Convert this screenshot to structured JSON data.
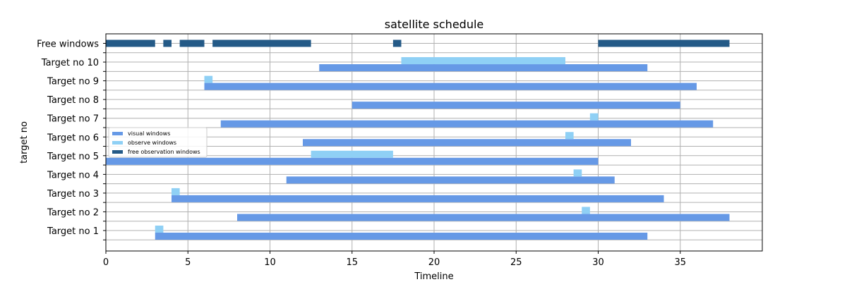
{
  "chart_data": {
    "type": "gantt",
    "title": "satellite schedule",
    "xlabel": "Timeline",
    "ylabel": "target no",
    "xlim": [
      0,
      40
    ],
    "x_ticks": [
      0,
      5,
      10,
      15,
      20,
      25,
      30,
      35
    ],
    "grid": true,
    "legend_position": "center-left",
    "colors": {
      "visual": "#6699e6",
      "observe": "#8fd0f5",
      "free": "#245a87"
    },
    "legend": [
      {
        "key": "visual",
        "label": "visual windows"
      },
      {
        "key": "observe",
        "label": "observe windows"
      },
      {
        "key": "free",
        "label": "free observation windows"
      }
    ],
    "rows": [
      {
        "label": "Target no 1",
        "visual": [
          3,
          33
        ],
        "observe": [
          3,
          3.5
        ]
      },
      {
        "label": "Target no 2",
        "visual": [
          8,
          38
        ],
        "observe": [
          29,
          29.5
        ]
      },
      {
        "label": "Target no 3",
        "visual": [
          4,
          34
        ],
        "observe": [
          4,
          4.5
        ]
      },
      {
        "label": "Target no 4",
        "visual": [
          11,
          31
        ],
        "observe": [
          28.5,
          29
        ]
      },
      {
        "label": "Target no 5",
        "visual": [
          0,
          30
        ],
        "observe": [
          12.5,
          17.5
        ]
      },
      {
        "label": "Target no 6",
        "visual": [
          12,
          32
        ],
        "observe": [
          28,
          28.5
        ]
      },
      {
        "label": "Target no 7",
        "visual": [
          7,
          37
        ],
        "observe": [
          29.5,
          30
        ]
      },
      {
        "label": "Target no 8",
        "visual": [
          15,
          35
        ],
        "observe": null
      },
      {
        "label": "Target no 9",
        "visual": [
          6,
          36
        ],
        "observe": [
          6,
          6.5
        ]
      },
      {
        "label": "Target no 10",
        "visual": [
          13,
          33
        ],
        "observe": [
          18,
          28
        ]
      }
    ],
    "free_windows": {
      "label": "Free windows",
      "intervals": [
        [
          0,
          3
        ],
        [
          3.5,
          4
        ],
        [
          4.5,
          6
        ],
        [
          6.5,
          12.5
        ],
        [
          17.5,
          18
        ],
        [
          30,
          38
        ]
      ]
    }
  }
}
